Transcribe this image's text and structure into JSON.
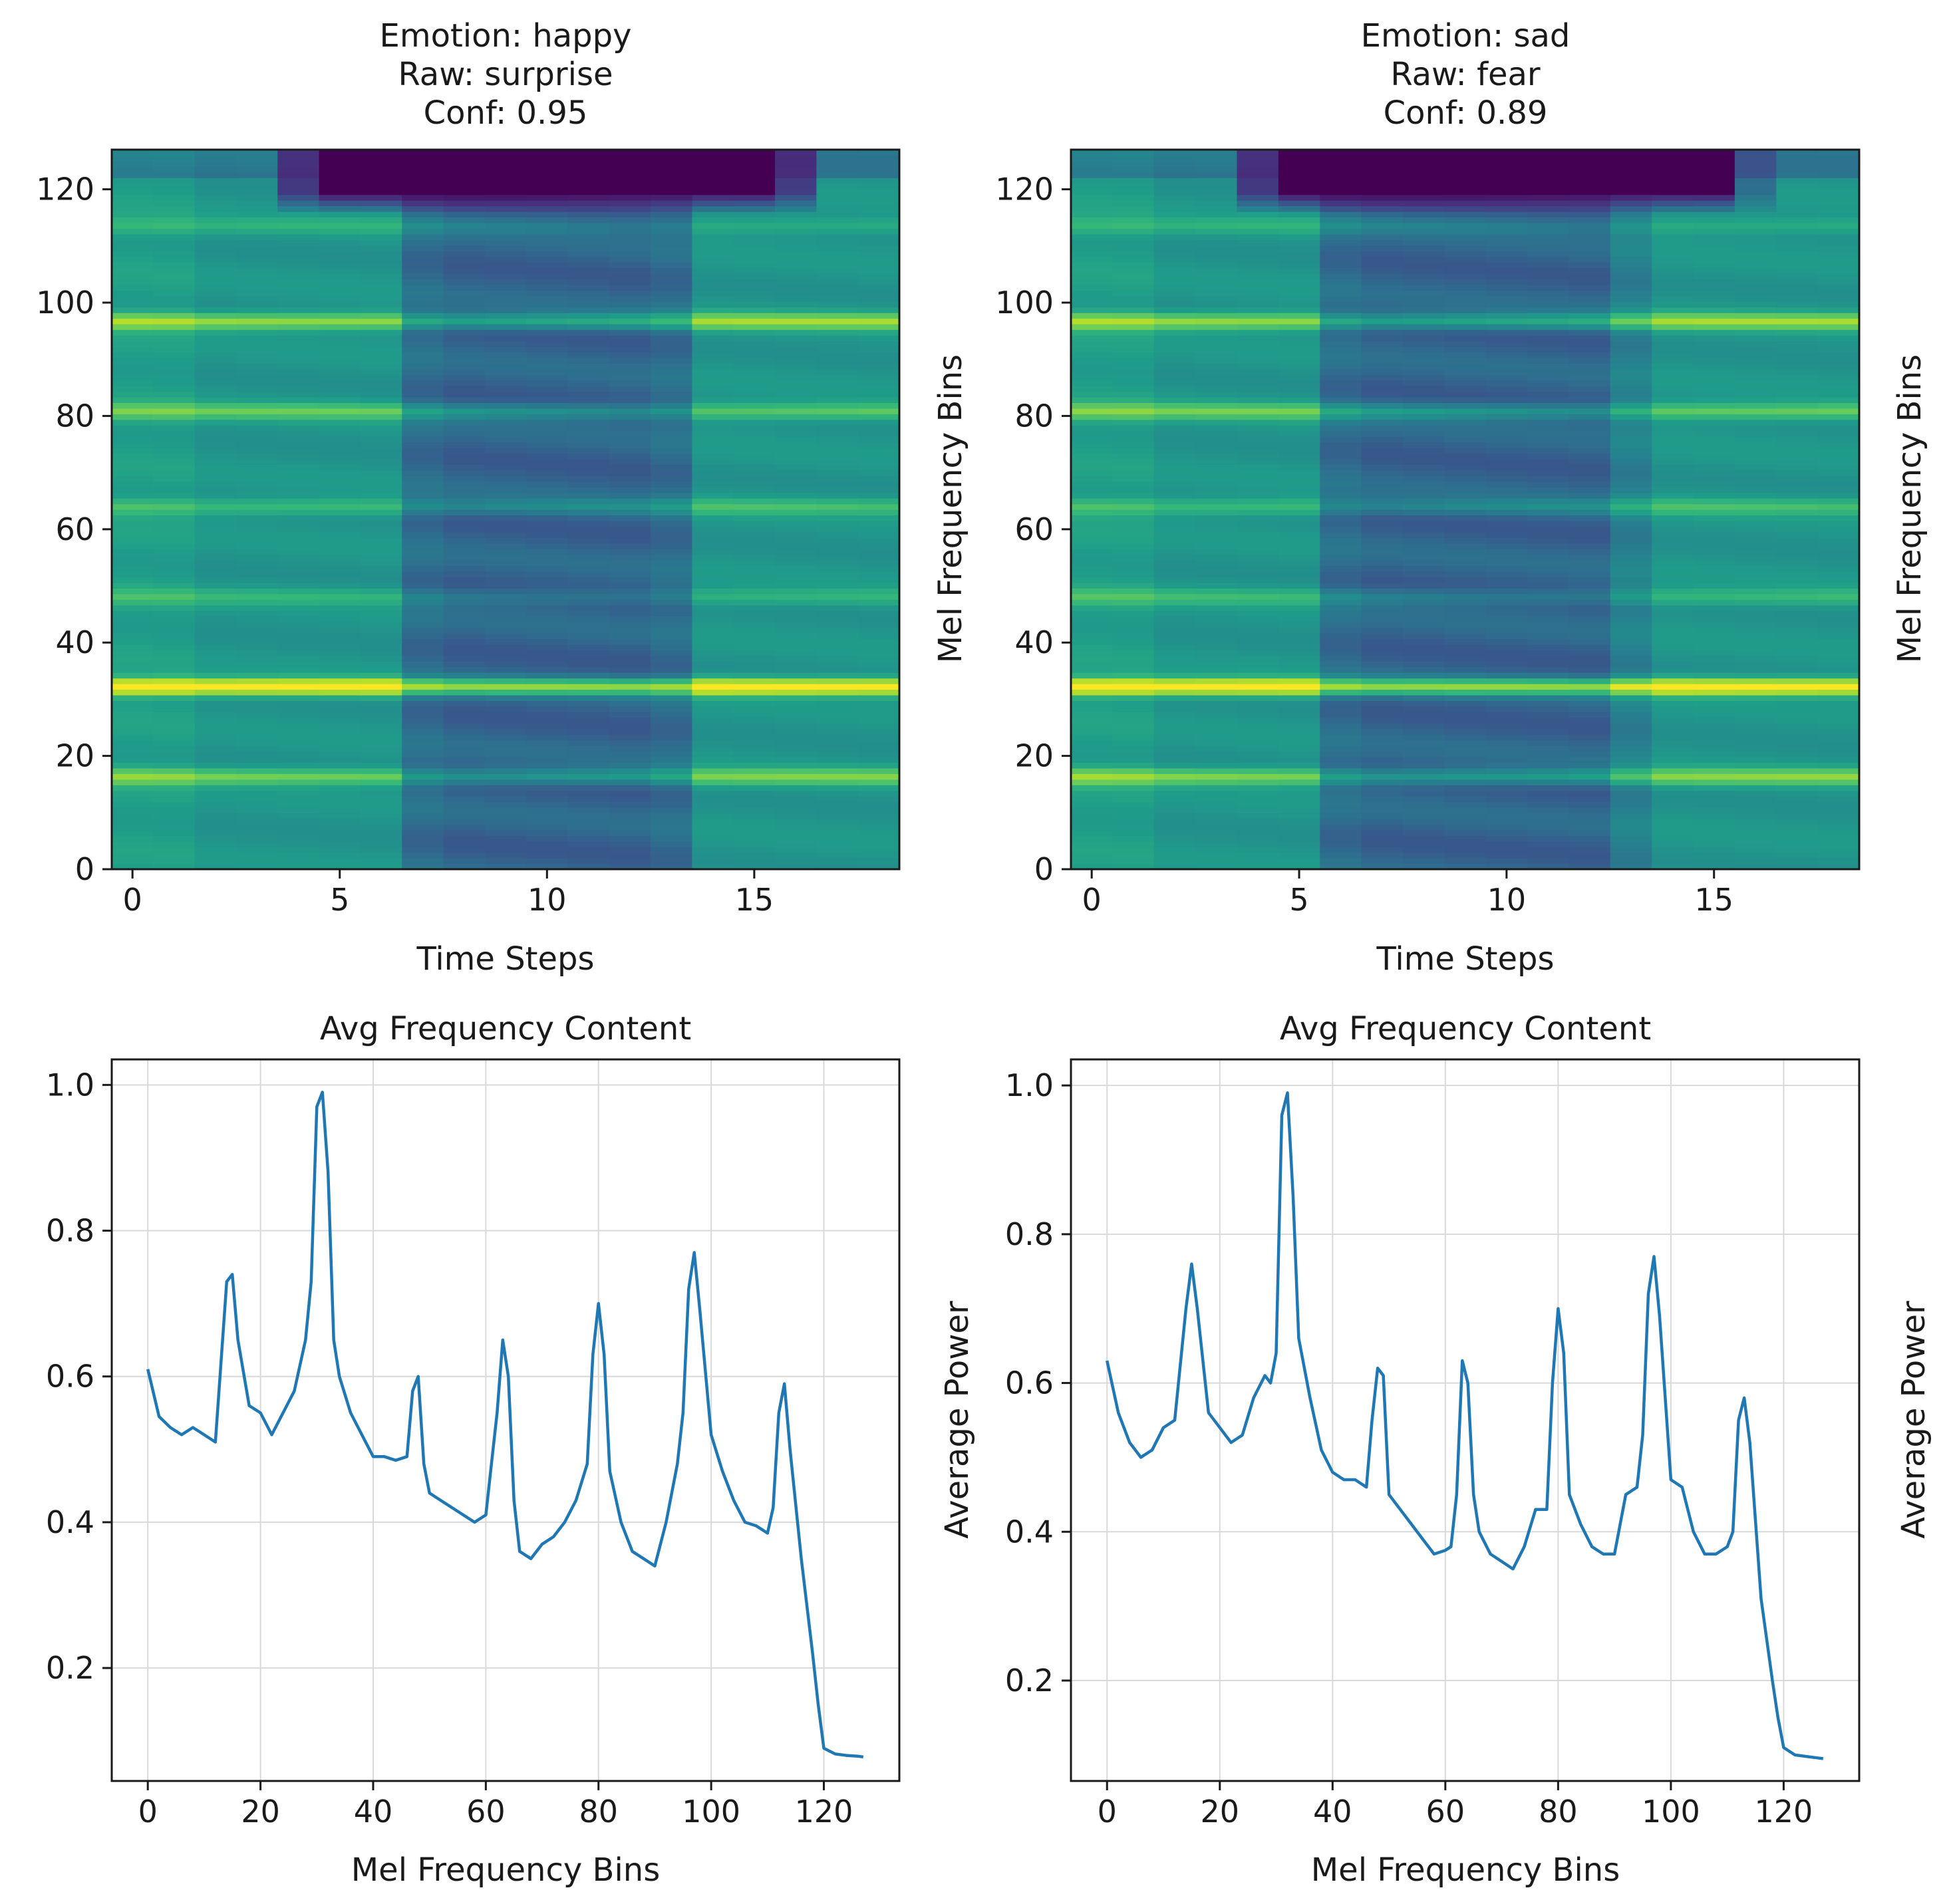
{
  "figure": {
    "background": "#ffffff",
    "line_color": "#1f77b4",
    "grid_color": "#d9d9d9"
  },
  "chart_data": [
    {
      "id": "spec1",
      "type": "heatmap",
      "title_lines": [
        "Emotion: happy",
        "Raw: surprise",
        "Conf: 0.95"
      ],
      "xlabel": "Time Steps",
      "ylabel": "Mel Frequency Bins",
      "xlim": [
        -0.5,
        18.5
      ],
      "ylim": [
        0,
        127
      ],
      "xticks": [
        0,
        5,
        10,
        15
      ],
      "yticks": [
        0,
        20,
        40,
        60,
        80,
        100,
        120
      ],
      "colormap": "viridis",
      "dark_band_time": [
        7,
        13
      ],
      "top_dark_time": [
        4,
        16
      ],
      "bright_bins": [
        {
          "bin": 32,
          "intensity": 1.0
        },
        {
          "bin": 97,
          "intensity": 0.78
        },
        {
          "bin": 16,
          "intensity": 0.72
        },
        {
          "bin": 81,
          "intensity": 0.68
        },
        {
          "bin": 64,
          "intensity": 0.62
        },
        {
          "bin": 48,
          "intensity": 0.58
        },
        {
          "bin": 114,
          "intensity": 0.56
        }
      ]
    },
    {
      "id": "spec2",
      "type": "heatmap",
      "title_lines": [
        "Emotion: sad",
        "Raw: fear",
        "Conf: 0.89"
      ],
      "xlabel": "Time Steps",
      "ylabel": "Mel Frequency Bins",
      "xlim": [
        -0.5,
        18.5
      ],
      "ylim": [
        0,
        127
      ],
      "xticks": [
        0,
        5,
        10,
        15
      ],
      "yticks": [
        0,
        20,
        40,
        60,
        80,
        100,
        120
      ],
      "colormap": "viridis",
      "dark_band_time": [
        6,
        12.5
      ],
      "top_dark_time": [
        4,
        15.5
      ],
      "bright_bins": [
        {
          "bin": 32,
          "intensity": 1.0
        },
        {
          "bin": 97,
          "intensity": 0.78
        },
        {
          "bin": 16,
          "intensity": 0.74
        },
        {
          "bin": 81,
          "intensity": 0.7
        },
        {
          "bin": 64,
          "intensity": 0.62
        },
        {
          "bin": 48,
          "intensity": 0.6
        },
        {
          "bin": 114,
          "intensity": 0.56
        }
      ]
    },
    {
      "id": "avg1",
      "type": "line",
      "title": "Avg Frequency Content",
      "xlabel": "Mel Frequency Bins",
      "ylabel": "Average Power",
      "show_ylabel": false,
      "xlim": [
        -6.4,
        133.4
      ],
      "ylim": [
        0.045,
        1.035
      ],
      "xticks": [
        0,
        20,
        40,
        60,
        80,
        100,
        120
      ],
      "yticks": [
        0.2,
        0.4,
        0.6,
        0.8,
        1.0
      ],
      "grid": true,
      "x": [
        0,
        2,
        4,
        6,
        8,
        10,
        12,
        14,
        15,
        16,
        18,
        20,
        22,
        24,
        26,
        28,
        29,
        30,
        31,
        32,
        33,
        34,
        36,
        38,
        40,
        42,
        44,
        46,
        47,
        48,
        49,
        50,
        52,
        54,
        56,
        58,
        60,
        61,
        62,
        63,
        64,
        65,
        66,
        68,
        70,
        72,
        74,
        76,
        78,
        79,
        80,
        81,
        82,
        84,
        86,
        88,
        90,
        92,
        94,
        95,
        96,
        97,
        98,
        100,
        102,
        104,
        106,
        108,
        110,
        111,
        112,
        113,
        114,
        116,
        118,
        119,
        120,
        122,
        124,
        126,
        127
      ],
      "y": [
        0.61,
        0.545,
        0.53,
        0.52,
        0.53,
        0.52,
        0.51,
        0.73,
        0.74,
        0.65,
        0.56,
        0.55,
        0.52,
        0.55,
        0.58,
        0.65,
        0.73,
        0.97,
        0.99,
        0.88,
        0.65,
        0.6,
        0.55,
        0.52,
        0.49,
        0.49,
        0.485,
        0.49,
        0.58,
        0.6,
        0.48,
        0.44,
        0.43,
        0.42,
        0.41,
        0.4,
        0.41,
        0.48,
        0.55,
        0.65,
        0.6,
        0.43,
        0.36,
        0.35,
        0.37,
        0.38,
        0.4,
        0.43,
        0.48,
        0.63,
        0.7,
        0.63,
        0.47,
        0.4,
        0.36,
        0.35,
        0.34,
        0.4,
        0.48,
        0.55,
        0.72,
        0.77,
        0.69,
        0.52,
        0.47,
        0.43,
        0.4,
        0.395,
        0.385,
        0.42,
        0.55,
        0.59,
        0.5,
        0.35,
        0.22,
        0.15,
        0.09,
        0.082,
        0.08,
        0.079,
        0.078
      ]
    },
    {
      "id": "avg2",
      "type": "line",
      "title": "Avg Frequency Content",
      "xlabel": "Mel Frequency Bins",
      "ylabel": "Average Power",
      "show_ylabel": true,
      "xlim": [
        -6.4,
        133.4
      ],
      "ylim": [
        0.065,
        1.035
      ],
      "xticks": [
        0,
        20,
        40,
        60,
        80,
        100,
        120
      ],
      "yticks": [
        0.2,
        0.4,
        0.6,
        0.8,
        1.0
      ],
      "grid": true,
      "x": [
        0,
        2,
        4,
        6,
        8,
        10,
        12,
        14,
        15,
        16,
        18,
        20,
        22,
        24,
        26,
        28,
        29,
        30,
        31,
        32,
        33,
        34,
        36,
        38,
        40,
        42,
        44,
        46,
        47,
        48,
        49,
        50,
        52,
        54,
        56,
        58,
        60,
        61,
        62,
        63,
        64,
        65,
        66,
        68,
        70,
        72,
        74,
        76,
        78,
        79,
        80,
        81,
        82,
        84,
        86,
        88,
        90,
        92,
        94,
        95,
        96,
        97,
        98,
        100,
        102,
        104,
        106,
        108,
        110,
        111,
        112,
        113,
        114,
        116,
        118,
        119,
        120,
        122,
        124,
        126,
        127
      ],
      "y": [
        0.63,
        0.56,
        0.52,
        0.5,
        0.51,
        0.54,
        0.55,
        0.7,
        0.76,
        0.7,
        0.56,
        0.54,
        0.52,
        0.53,
        0.58,
        0.61,
        0.6,
        0.64,
        0.96,
        0.99,
        0.85,
        0.66,
        0.58,
        0.51,
        0.48,
        0.47,
        0.47,
        0.46,
        0.55,
        0.62,
        0.61,
        0.45,
        0.43,
        0.41,
        0.39,
        0.37,
        0.375,
        0.38,
        0.45,
        0.63,
        0.6,
        0.45,
        0.4,
        0.37,
        0.36,
        0.35,
        0.38,
        0.43,
        0.43,
        0.6,
        0.7,
        0.64,
        0.45,
        0.41,
        0.38,
        0.37,
        0.37,
        0.45,
        0.46,
        0.53,
        0.72,
        0.77,
        0.69,
        0.47,
        0.46,
        0.4,
        0.37,
        0.37,
        0.38,
        0.4,
        0.55,
        0.58,
        0.52,
        0.31,
        0.2,
        0.15,
        0.11,
        0.1,
        0.098,
        0.096,
        0.095
      ]
    }
  ]
}
